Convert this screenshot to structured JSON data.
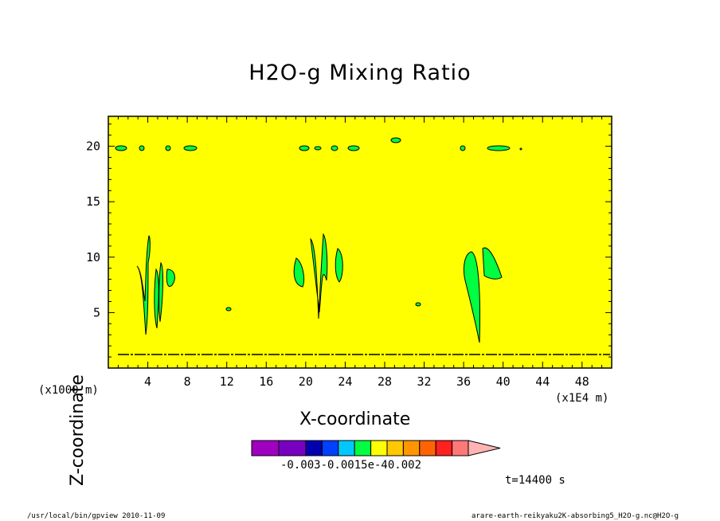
{
  "chart_data": {
    "type": "heatmap",
    "title": "H2O-g Mixing Ratio",
    "xlabel": "X-coordinate",
    "ylabel": "Z-coordinate",
    "x_units_label": "(x1E4 m)",
    "y_units_label": "(x1000 m)",
    "x_ticks": [
      "4",
      "8",
      "12",
      "16",
      "20",
      "24",
      "28",
      "32",
      "36",
      "40",
      "44",
      "48"
    ],
    "y_ticks": [
      "5",
      "10",
      "15",
      "20"
    ],
    "xlim": [
      0,
      51
    ],
    "ylim": [
      0,
      22.7
    ],
    "grid": false,
    "background_color": "#ffff00",
    "region_color": "#00ff40",
    "colorbar": {
      "labels_text": "-0.003-0.0015e-40.002",
      "colors": [
        "#a000c0",
        "#7800c0",
        "#0000b0",
        "#0040ff",
        "#00c8ff",
        "#00ff40",
        "#ffff00",
        "#ffc800",
        "#ff9600",
        "#ff6400",
        "#ff2020",
        "#ff7878"
      ],
      "arrow_color": "#ffb4b4"
    },
    "timestamp": "t=14400 s"
  },
  "footer": {
    "left": "/usr/local/bin/gpview  2010-11-09",
    "right": "arare-earth-reikyaku2K-absorbing5_H2O-g.nc@H2O-g"
  }
}
